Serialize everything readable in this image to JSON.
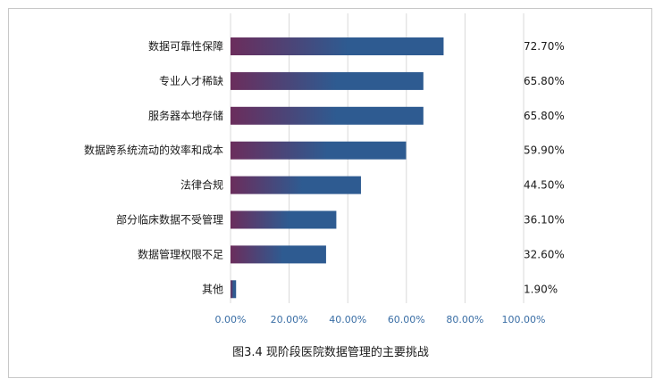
{
  "chart_data": {
    "type": "bar",
    "orientation": "horizontal",
    "categories": [
      "数据可靠性保障",
      "专业人才稀缺",
      "服务器本地存储",
      "数据跨系统流动的效率和成本",
      "法律合规",
      "部分临床数据不受管理",
      "数据管理权限不足",
      "其他"
    ],
    "values": [
      72.7,
      65.8,
      65.8,
      59.9,
      44.5,
      36.1,
      32.6,
      1.9
    ],
    "value_labels": [
      "72.70%",
      "65.80%",
      "65.80%",
      "59.90%",
      "44.50%",
      "36.10%",
      "32.60%",
      "1.90%"
    ],
    "x_ticks": [
      "0.00%",
      "20.00%",
      "40.00%",
      "60.00%",
      "80.00%",
      "100.00%"
    ],
    "xlim": [
      0,
      100
    ],
    "grid": "vertical",
    "legend": "none",
    "colors": {
      "bar_start": "#6b2d5c",
      "bar_end": "#2e5b91",
      "grid": "#d9d9d9",
      "tick_text": "#3a6ea5"
    }
  },
  "caption": "图3.4  现阶段医院数据管理的主要挑战"
}
